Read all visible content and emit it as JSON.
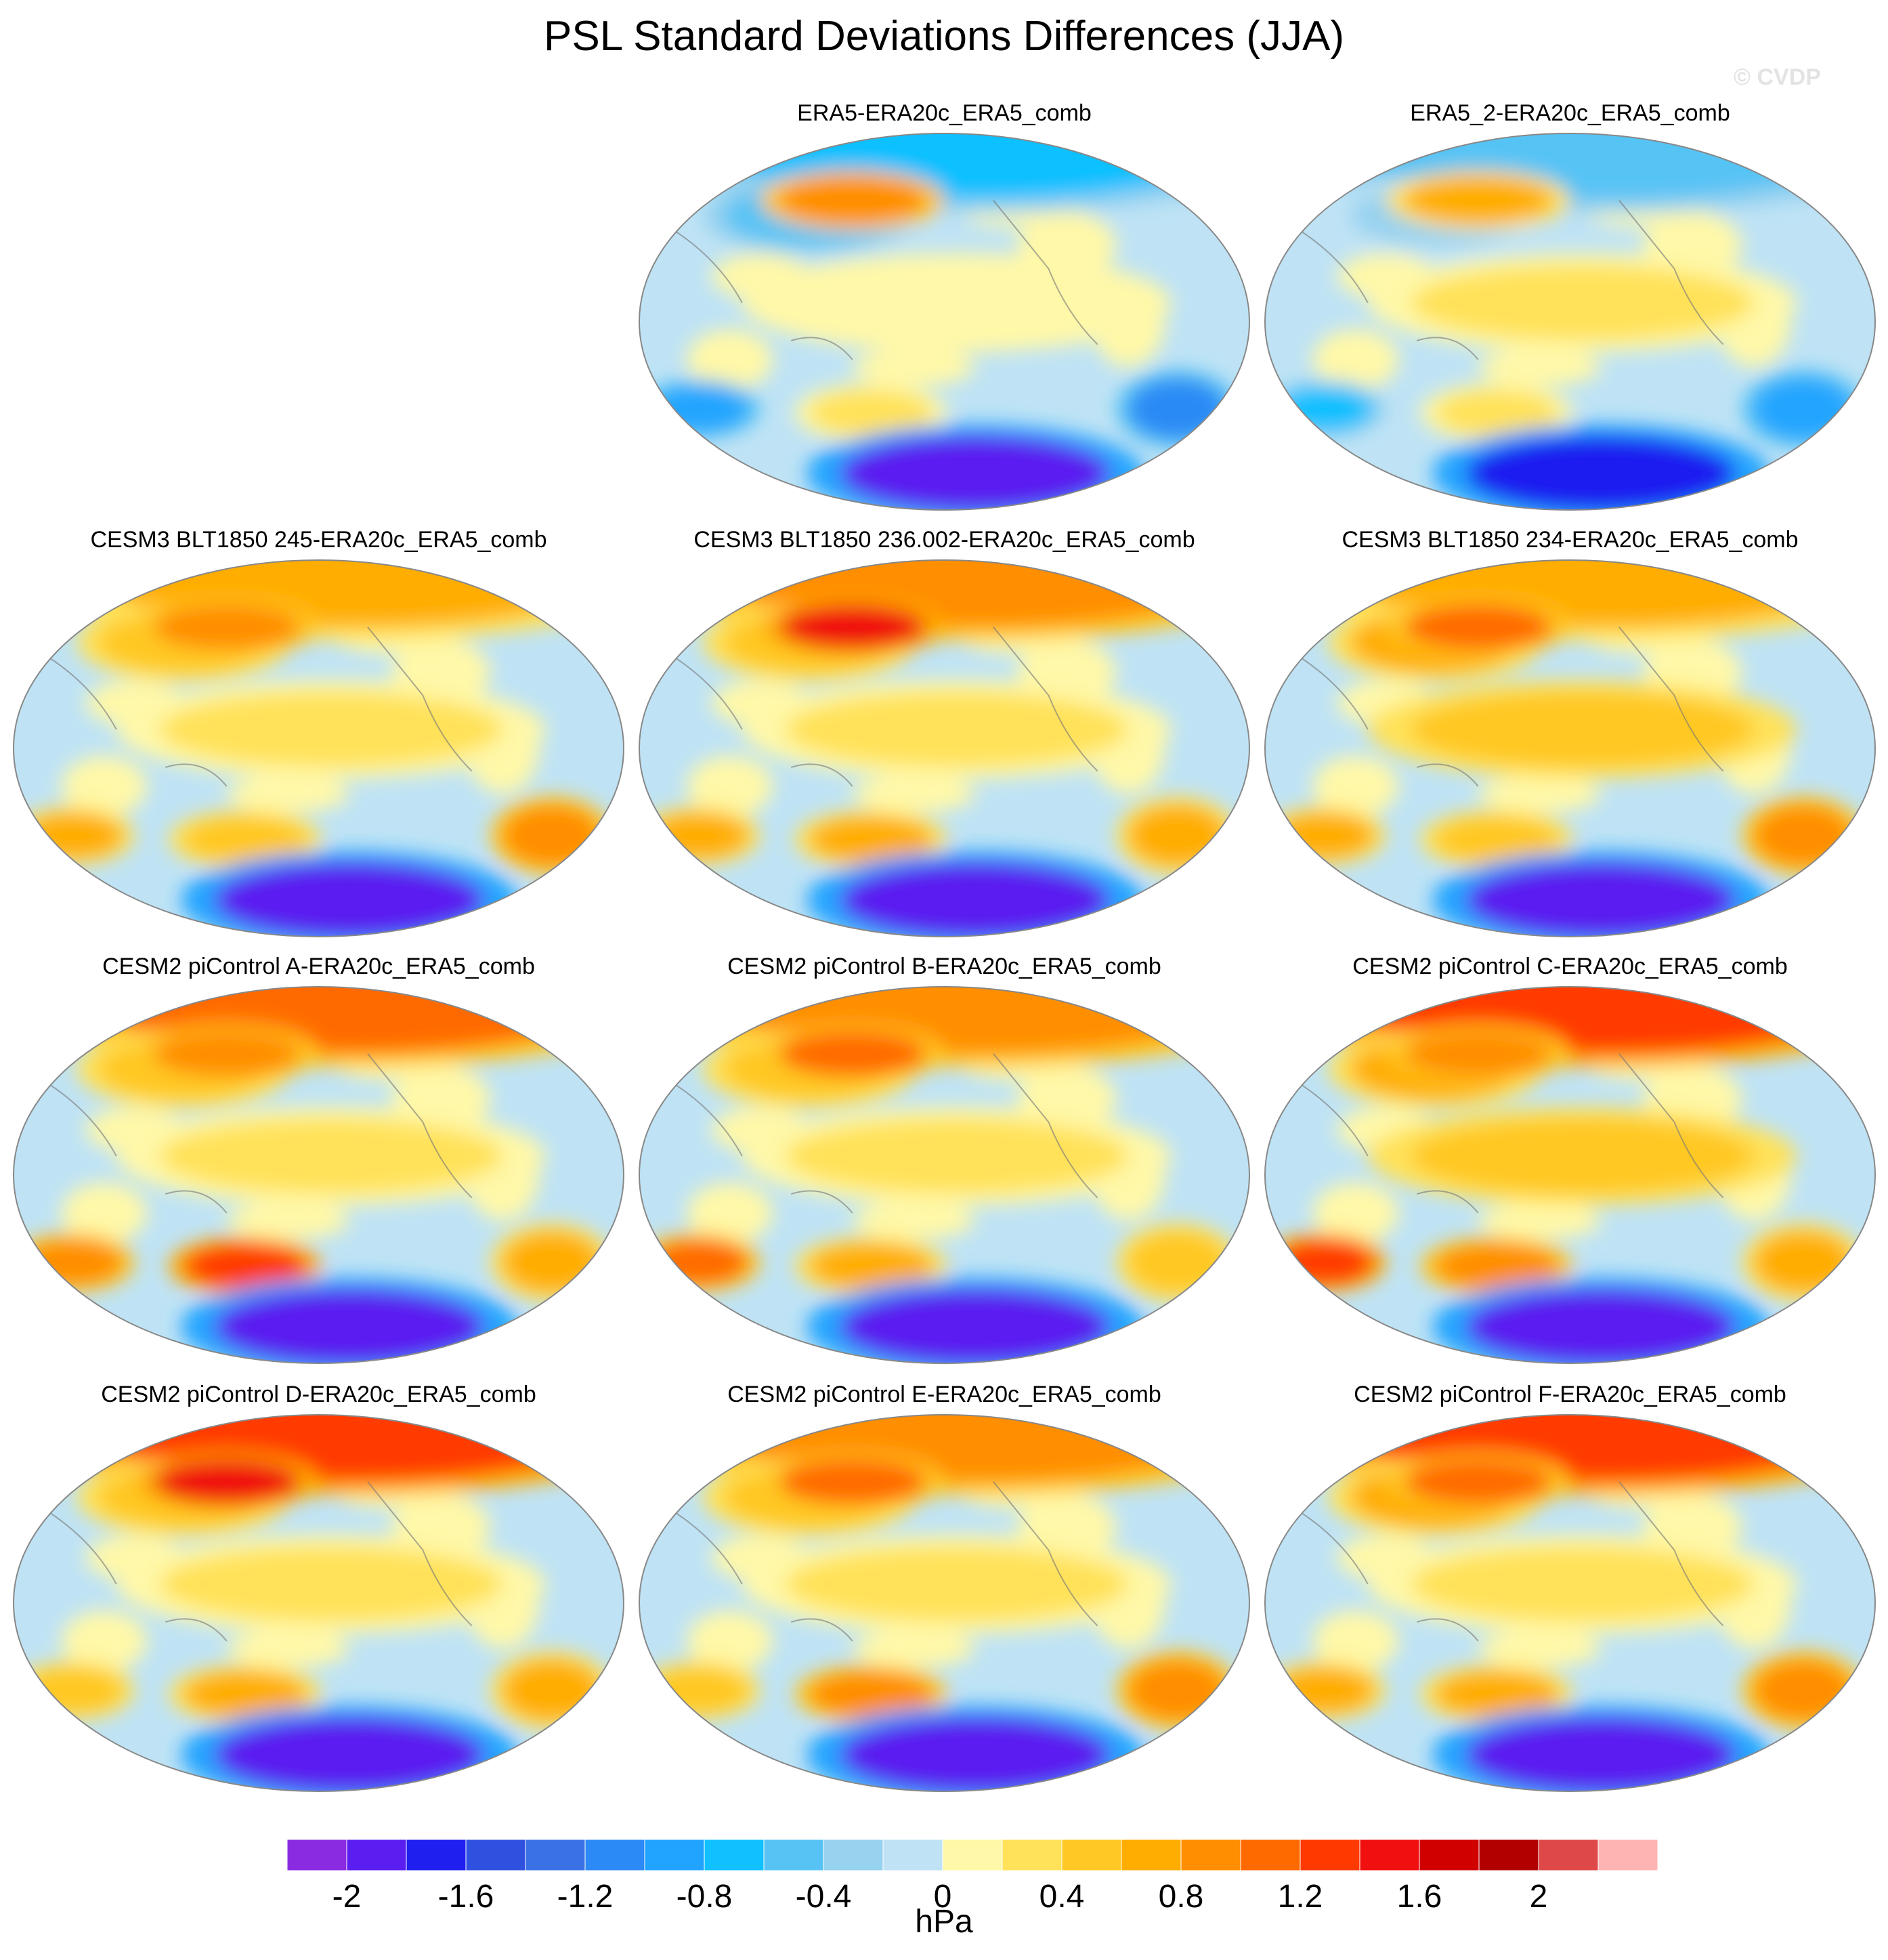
{
  "title": "PSL Standard Deviations Differences (JJA)",
  "watermark": "© CVDP",
  "units": "hPa",
  "chart_data": {
    "type": "heatmap",
    "variable": "PSL",
    "statistic": "standard deviation difference",
    "season": "JJA",
    "projection": "global map",
    "panels": [
      {
        "title": "ERA5-ERA20c_ERA5_comb",
        "pattern": [
          -0.7,
          -0.5,
          0.1,
          0.3,
          -1.9,
          0.8,
          -1.2,
          -0.9
        ]
      },
      {
        "title": "ERA5_2-ERA20c_ERA5_comb",
        "pattern": [
          -0.6,
          -0.4,
          0.2,
          0.3,
          -1.8,
          0.7,
          -1.0,
          -0.8
        ]
      },
      {
        "title": "CESM3 BLT1850 245-ERA20c_ERA5_comb",
        "pattern": [
          0.6,
          0.4,
          0.3,
          0.5,
          -2.0,
          0.9,
          0.8,
          0.7
        ]
      },
      {
        "title": "CESM3 BLT1850 236.002-ERA20c_ERA5_comb",
        "pattern": [
          0.8,
          0.5,
          0.2,
          0.6,
          -2.0,
          1.4,
          0.7,
          0.6
        ]
      },
      {
        "title": "CESM3 BLT1850 234-ERA20c_ERA5_comb",
        "pattern": [
          0.7,
          0.6,
          0.4,
          0.5,
          -2.0,
          1.0,
          0.9,
          0.6
        ]
      },
      {
        "title": "CESM2 piControl A-ERA20c_ERA5_comb",
        "pattern": [
          1.1,
          0.4,
          0.3,
          1.2,
          -2.0,
          0.8,
          0.6,
          0.9
        ]
      },
      {
        "title": "CESM2 piControl B-ERA20c_ERA5_comb",
        "pattern": [
          0.9,
          0.5,
          0.3,
          0.7,
          -1.9,
          1.0,
          0.5,
          1.0
        ]
      },
      {
        "title": "CESM2 piControl C-ERA20c_ERA5_comb",
        "pattern": [
          1.2,
          0.6,
          0.4,
          0.9,
          -2.0,
          0.8,
          0.7,
          1.2
        ]
      },
      {
        "title": "CESM2 piControl D-ERA20c_ERA5_comb",
        "pattern": [
          1.3,
          0.5,
          0.2,
          0.6,
          -2.0,
          1.5,
          0.6,
          0.4
        ]
      },
      {
        "title": "CESM2 piControl E-ERA20c_ERA5_comb",
        "pattern": [
          0.8,
          0.5,
          0.3,
          0.8,
          -2.0,
          1.0,
          0.8,
          0.5
        ]
      },
      {
        "title": "CESM2 piControl F-ERA20c_ERA5_comb",
        "pattern": [
          1.2,
          0.6,
          0.3,
          0.7,
          -2.0,
          1.1,
          0.9,
          0.6
        ]
      }
    ],
    "colorbar": {
      "range": [
        -2.2,
        2.2
      ],
      "step": 0.2,
      "tick_labels": [
        "-2",
        "-1.6",
        "-1.2",
        "-0.8",
        "-0.4",
        "0",
        "0.4",
        "0.8",
        "1.2",
        "1.6",
        "2"
      ],
      "colors": [
        "#8a2be2",
        "#5a1ef0",
        "#1f1ff0",
        "#3050e0",
        "#3a72e6",
        "#2b8af5",
        "#20a4ff",
        "#10c0ff",
        "#57c3f5",
        "#97d2ef",
        "#bfe3f5",
        "#fff8a8",
        "#ffe25a",
        "#ffc824",
        "#ffad00",
        "#ff8e00",
        "#ff6a00",
        "#ff3a00",
        "#f01010",
        "#d00000",
        "#b20000",
        "#df4848",
        "#ffb4b4"
      ]
    }
  }
}
